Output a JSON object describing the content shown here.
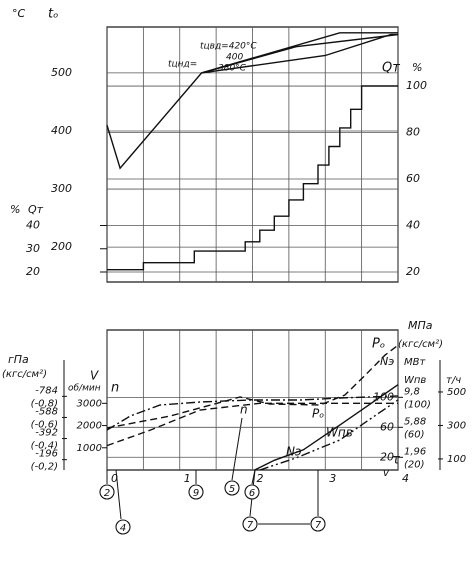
{
  "chart_data": [
    {
      "type": "line",
      "y_unit": "°С",
      "y_title": "tₒ",
      "y2_unit": "%",
      "y2_title": "Qт",
      "y3_unit": "%",
      "y3_title": "Qт",
      "xlim": [
        0,
        4
      ],
      "xgrid": [
        0,
        0.5,
        1,
        1.5,
        2,
        2.5,
        3,
        3.5,
        4
      ],
      "ylim": [
        140,
        579
      ],
      "yticks": [
        200,
        300,
        400,
        500
      ],
      "y2lim": [
        15.7,
        125.4
      ],
      "y2ticks": [
        20,
        40,
        60,
        80,
        100
      ],
      "y3ticks": [
        20,
        30,
        40
      ],
      "grid": true,
      "annotations": [
        "tцвд=420°С",
        "400",
        "380°С",
        "tцнд="
      ],
      "series": [
        {
          "axis": "y",
          "color": "#111111",
          "dash": "solid",
          "x": [
            0,
            0.18,
            1.3,
            3.2,
            4
          ],
          "values": [
            410,
            336,
            500,
            569,
            569
          ]
        },
        {
          "axis": "y",
          "color": "#111111",
          "dash": "solid",
          "x": [
            1.3,
            2.6,
            4
          ],
          "values": [
            500,
            545,
            566
          ]
        },
        {
          "axis": "y",
          "color": "#111111",
          "dash": "solid",
          "x": [
            1.3,
            3.0,
            3.9,
            4
          ],
          "values": [
            500,
            530,
            566,
            566
          ]
        },
        {
          "axis": "y2",
          "color": "#111111",
          "dash": "solid",
          "x": [
            0,
            0.5,
            0.5,
            1.2,
            1.2,
            1.9,
            1.9,
            2.1,
            2.1,
            2.3,
            2.3,
            2.5,
            2.5,
            2.7,
            2.7,
            2.9,
            2.9,
            3.05,
            3.05,
            3.2,
            3.2,
            3.35,
            3.35,
            3.5,
            3.5,
            4
          ],
          "values": [
            21,
            21,
            24,
            24,
            29,
            29,
            33,
            33,
            38,
            38,
            44,
            44,
            51,
            51,
            58,
            58,
            66,
            66,
            74,
            74,
            82,
            82,
            90,
            90,
            100,
            100
          ]
        }
      ]
    },
    {
      "type": "line",
      "xlim": [
        0,
        4
      ],
      "xgrid": [
        0,
        0.5,
        1,
        1.5,
        2,
        2.5,
        3,
        3.5,
        4
      ],
      "xticks": [
        0,
        1,
        2,
        3,
        4
      ],
      "x_label": "τ",
      "grid": true,
      "vacuum_unit": "гПа",
      "vacuum_unit2": "(кгс/см²)",
      "vacuum_lim": [
        -100,
        -1400
      ],
      "vacuum_ticks": [
        -784,
        -588,
        -392,
        -196
      ],
      "vacuum_kgf_lim": [
        -0.1,
        -1.43
      ],
      "vacuum_kgf_ticks": [
        {
          "value": -0.8,
          "label": "(-0,8)"
        },
        {
          "value": -0.6,
          "label": "(-0,6)"
        },
        {
          "value": -0.4,
          "label": "(-0,4)"
        },
        {
          "value": -0.2,
          "label": "(-0,2)"
        }
      ],
      "speed_unit": "об/мин",
      "speed_title": "n",
      "speed_lim": [
        0,
        6300
      ],
      "speed_ticks": [
        1000,
        2000,
        3000
      ],
      "pressure_unit": "МПа",
      "pressure_title": "Pₒ",
      "pressure_unit2": "(кгс/см²)",
      "pressure_lim": [
        0.3,
        18.6
      ],
      "pressure_ticks": [
        {
          "value": 9.8,
          "label": "9,8"
        },
        {
          "value": 5.88,
          "label": "5,88"
        },
        {
          "value": 1.96,
          "label": "1,96"
        }
      ],
      "pressure_kgf_lim": [
        3,
        190
      ],
      "pressure_kgf_ticks": [
        {
          "value": 100,
          "label": "(100)"
        },
        {
          "value": 60,
          "label": "(60)"
        },
        {
          "value": 20,
          "label": "(20)"
        }
      ],
      "power_title": "Nэ",
      "power_unit": "МВт",
      "power_lim": [
        3,
        190
      ],
      "power_ticks": [
        20,
        60,
        100
      ],
      "flow_title": "Wпв",
      "flow_unit": "т/ч",
      "flow_lim": [
        34,
        870
      ],
      "flow_ticks": [
        100,
        300,
        500
      ],
      "series": [
        {
          "name": "V",
          "axis": "vacuum",
          "color": "#111111",
          "dash": "dashdot",
          "x": [
            0,
            0.32,
            0.73,
            1.28,
            1.97,
            2.65,
            3.2,
            4.0
          ],
          "values": [
            -471,
            -601,
            -704,
            -731,
            -750,
            -750,
            -769,
            -787
          ]
        },
        {
          "name": "n",
          "axis": "speed",
          "color": "#111111",
          "dash": "dashed",
          "x": [
            0,
            0.6,
            1.28,
            2.1,
            4
          ],
          "values": [
            1100,
            1800,
            2700,
            3000,
            3000
          ]
        },
        {
          "name": "Pₒ",
          "axis": "pressure",
          "color": "#111111",
          "dash": "dashed",
          "x": [
            0,
            0.87,
            1.83,
            2.24,
            2.93,
            3.27,
            3.55,
            3.82,
            4.0
          ],
          "values": [
            5.79,
            7.36,
            9.84,
            8.93,
            8.8,
            10.1,
            12.7,
            15.3,
            16.6
          ]
        },
        {
          "name": "Nэ",
          "axis": "power",
          "color": "#111111",
          "dash": "solid",
          "x": [
            2.03,
            2.3,
            2.7,
            3.2,
            3.6,
            4.0
          ],
          "values": [
            3,
            16,
            30,
            63,
            90,
            117
          ]
        },
        {
          "name": "Wпв",
          "axis": "flow",
          "color": "#111111",
          "dash": "dashdotdot",
          "x": [
            2.1,
            2.6,
            3.2,
            3.6,
            4.0
          ],
          "values": [
            34,
            106,
            213,
            333,
            452
          ]
        }
      ],
      "annotations": [
        "2",
        "4",
        "9",
        "5",
        "6",
        "7",
        "7",
        "v"
      ]
    }
  ]
}
